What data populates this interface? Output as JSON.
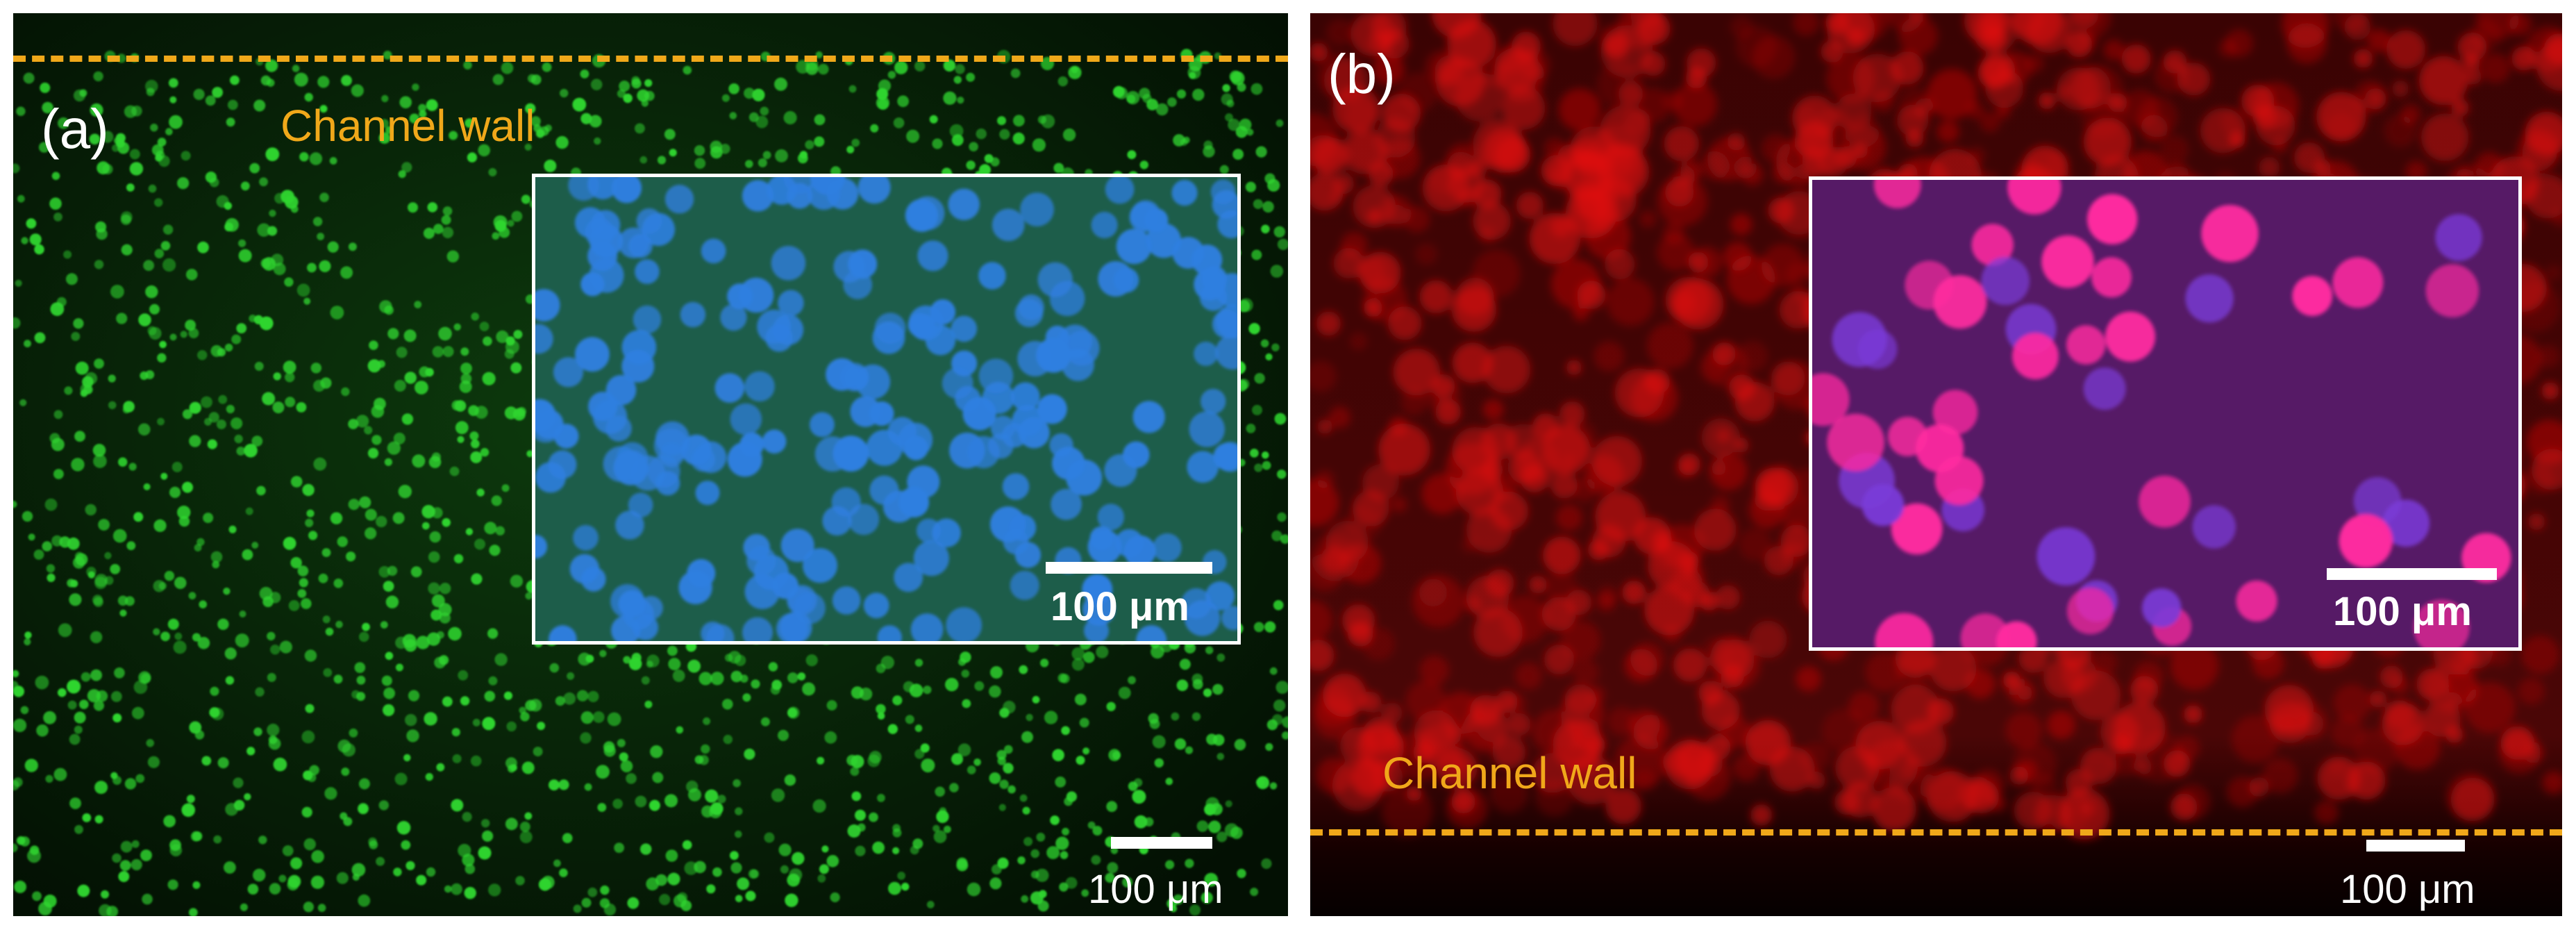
{
  "figure": {
    "panel_a": {
      "label": "(a)",
      "wall_label": "Channel wall",
      "inset_scale": "100 μm",
      "scale": "100 μm",
      "colors": {
        "cells": "#2fd52f",
        "inset_nuclei": "#2f7fe0",
        "inset_background": "#1f6a55"
      }
    },
    "panel_b": {
      "label": "(b)",
      "wall_label": "Channel wall",
      "inset_scale": "100 μm",
      "scale": "100 μm",
      "colors": {
        "cells": "#e01010",
        "inset_nuclei": "#ff2aa0",
        "inset_background": "#5a1a6a"
      }
    },
    "accent_color": "#f0a81a"
  }
}
